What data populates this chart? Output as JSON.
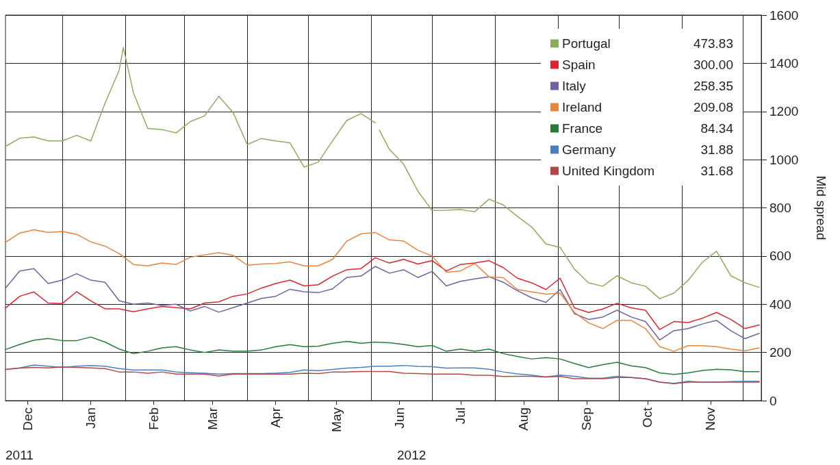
{
  "chart_data": {
    "type": "line",
    "ylabel": "Mid spread",
    "ylim": [
      0,
      1600
    ],
    "yticks": [
      0,
      200,
      400,
      600,
      800,
      1000,
      1200,
      1400,
      1600
    ],
    "xlim": [
      "2011-12-04",
      "2012-12-10"
    ],
    "xticks": [
      {
        "value": "2011-12-15",
        "label": "Dec"
      },
      {
        "value": "2012-01-01",
        "label": null
      },
      {
        "value": "2012-01-15",
        "label": "Jan"
      },
      {
        "value": "2012-02-01",
        "label": null
      },
      {
        "value": "2012-02-15",
        "label": "Feb"
      },
      {
        "value": "2012-03-01",
        "label": null
      },
      {
        "value": "2012-03-15",
        "label": "Mar"
      },
      {
        "value": "2012-04-01",
        "label": null
      },
      {
        "value": "2012-04-15",
        "label": "Apr"
      },
      {
        "value": "2012-05-01",
        "label": null
      },
      {
        "value": "2012-05-15",
        "label": "May"
      },
      {
        "value": "2012-06-01",
        "label": null
      },
      {
        "value": "2012-06-15",
        "label": "Jun"
      },
      {
        "value": "2012-07-01",
        "label": null
      },
      {
        "value": "2012-07-15",
        "label": "Jul"
      },
      {
        "value": "2012-08-01",
        "label": null
      },
      {
        "value": "2012-08-15",
        "label": "Aug"
      },
      {
        "value": "2012-09-01",
        "label": null
      },
      {
        "value": "2012-09-15",
        "label": "Sep"
      },
      {
        "value": "2012-10-01",
        "label": null
      },
      {
        "value": "2012-10-15",
        "label": "Oct"
      },
      {
        "value": "2012-11-01",
        "label": null
      },
      {
        "value": "2012-11-15",
        "label": "Nov"
      },
      {
        "value": "2012-12-01",
        "label": null
      }
    ],
    "x": [
      "2011-12-04",
      "2011-12-11",
      "2011-12-18",
      "2011-12-25",
      "2012-01-01",
      "2012-01-08",
      "2012-01-15",
      "2012-01-22",
      "2012-01-29",
      "2012-02-05",
      "2012-02-12",
      "2012-02-19",
      "2012-02-26",
      "2012-03-04",
      "2012-03-11",
      "2012-03-18",
      "2012-03-25",
      "2012-04-01",
      "2012-04-08",
      "2012-04-15",
      "2012-04-22",
      "2012-04-29",
      "2012-05-06",
      "2012-05-13",
      "2012-05-20",
      "2012-05-27",
      "2012-06-03",
      "2012-06-10",
      "2012-06-17",
      "2012-06-24",
      "2012-07-01",
      "2012-07-08",
      "2012-07-15",
      "2012-07-22",
      "2012-07-29",
      "2012-08-05",
      "2012-08-12",
      "2012-08-19",
      "2012-08-26",
      "2012-09-02",
      "2012-09-09",
      "2012-09-16",
      "2012-09-23",
      "2012-09-30",
      "2012-10-07",
      "2012-10-14",
      "2012-10-21",
      "2012-10-28",
      "2012-11-04",
      "2012-11-11",
      "2012-11-18",
      "2012-11-25",
      "2012-12-02",
      "2012-12-09"
    ],
    "series": [
      {
        "name": "Portugal",
        "color": "#8aad5c",
        "x": [
          "2011-12-04",
          "2011-12-11",
          "2011-12-18",
          "2011-12-25",
          "2012-01-01",
          "2012-01-08",
          "2012-01-15",
          "2012-01-22",
          "2012-01-29",
          "2012-01-31",
          "2012-02-05",
          "2012-02-12",
          "2012-02-19",
          "2012-02-26",
          "2012-03-04",
          "2012-03-11",
          "2012-03-18",
          "2012-03-25",
          "2012-04-01",
          "2012-04-08",
          "2012-04-15",
          "2012-04-22",
          "2012-04-29",
          "2012-05-06",
          "2012-05-13",
          "2012-05-20",
          "2012-05-27",
          "2012-06-03",
          "2012-06-04",
          "2012-06-05",
          "2012-06-10",
          "2012-06-17",
          "2012-06-24",
          "2012-07-01",
          "2012-07-08",
          "2012-07-15",
          "2012-07-22",
          "2012-07-29",
          "2012-08-05",
          "2012-08-12",
          "2012-08-19",
          "2012-08-26",
          "2012-09-02",
          "2012-09-09",
          "2012-09-16",
          "2012-09-23",
          "2012-09-30",
          "2012-10-07",
          "2012-10-14",
          "2012-10-21",
          "2012-10-28",
          "2012-11-04",
          "2012-11-11",
          "2012-11-18",
          "2012-11-25",
          "2012-12-02",
          "2012-12-09"
        ],
        "values": [
          1055,
          1089,
          1094,
          1078,
          1078,
          1101,
          1078,
          1234,
          1372,
          1466,
          1277,
          1130,
          1125,
          1111,
          1158,
          1182,
          1263,
          1196,
          1063,
          1088,
          1078,
          1070,
          969,
          990,
          1078,
          1163,
          1191,
          1153,
          null,
          1123,
          1042,
          981,
          869,
          789,
          790,
          793,
          784,
          836,
          812,
          764,
          721,
          650,
          636,
          546,
          489,
          475,
          518,
          489,
          475,
          423,
          446,
          499,
          574,
          620,
          518,
          489,
          470
        ]
      },
      {
        "name": "Spain",
        "color": "#d7262e",
        "values": [
          384,
          433,
          451,
          405,
          403,
          452,
          414,
          381,
          381,
          369,
          381,
          391,
          386,
          381,
          405,
          410,
          433,
          443,
          467,
          486,
          500,
          476,
          481,
          517,
          543,
          548,
          593,
          571,
          586,
          567,
          581,
          538,
          565,
          571,
          581,
          552,
          508,
          489,
          461,
          508,
          385,
          366,
          380,
          404,
          385,
          375,
          295,
          328,
          324,
          342,
          366,
          337,
          299,
          314
        ]
      },
      {
        "name": "Italy",
        "color": "#7060a0",
        "values": [
          467,
          538,
          548,
          486,
          500,
          527,
          500,
          491,
          414,
          400,
          405,
          395,
          400,
          372,
          391,
          367,
          386,
          405,
          424,
          433,
          462,
          452,
          448,
          464,
          511,
          517,
          557,
          529,
          543,
          511,
          536,
          476,
          495,
          505,
          514,
          491,
          456,
          427,
          408,
          461,
          361,
          337,
          347,
          375,
          347,
          328,
          252,
          290,
          299,
          318,
          333,
          290,
          257,
          279
        ]
      },
      {
        "name": "Ireland",
        "color": "#e8843c",
        "values": [
          657,
          695,
          709,
          698,
          702,
          690,
          659,
          641,
          610,
          565,
          559,
          571,
          565,
          595,
          605,
          614,
          603,
          562,
          567,
          569,
          576,
          559,
          559,
          586,
          662,
          692,
          698,
          667,
          662,
          624,
          600,
          533,
          538,
          569,
          514,
          510,
          461,
          451,
          442,
          446,
          366,
          323,
          299,
          333,
          333,
          299,
          224,
          205,
          228,
          228,
          224,
          214,
          207,
          219
        ]
      },
      {
        "name": "France",
        "color": "#267a3a",
        "values": [
          212,
          233,
          251,
          258,
          249,
          249,
          264,
          243,
          214,
          195,
          205,
          219,
          224,
          210,
          200,
          210,
          205,
          205,
          210,
          224,
          232,
          224,
          226,
          238,
          246,
          238,
          243,
          240,
          233,
          224,
          229,
          205,
          214,
          205,
          214,
          195,
          183,
          173,
          178,
          173,
          154,
          137,
          149,
          159,
          144,
          137,
          115,
          109,
          115,
          125,
          130,
          128,
          120,
          120
        ]
      },
      {
        "name": "Germany",
        "color": "#4a7fbf",
        "values": [
          129,
          136,
          148,
          143,
          138,
          143,
          146,
          143,
          133,
          127,
          127,
          127,
          119,
          116,
          114,
          110,
          112,
          112,
          112,
          114,
          117,
          127,
          124,
          129,
          135,
          138,
          143,
          143,
          146,
          142,
          141,
          135,
          136,
          136,
          130,
          119,
          111,
          106,
          98,
          106,
          101,
          93,
          93,
          101,
          96,
          91,
          77,
          72,
          80,
          77,
          77,
          79,
          80,
          80
        ]
      },
      {
        "name": "United Kingdom",
        "color": "#b04848",
        "values": [
          129,
          135,
          138,
          136,
          140,
          138,
          136,
          133,
          119,
          119,
          114,
          119,
          110,
          110,
          110,
          102,
          110,
          110,
          110,
          110,
          110,
          114,
          112,
          119,
          119,
          121,
          121,
          121,
          114,
          112,
          110,
          110,
          110,
          105,
          105,
          100,
          101,
          101,
          98,
          101,
          91,
          91,
          91,
          96,
          96,
          91,
          77,
          70,
          77,
          77,
          77,
          77,
          77,
          77
        ]
      }
    ],
    "annotations": [
      "473.83",
      "300.00",
      "258.35",
      "209.08",
      "84.34",
      "31.88",
      "31.68",
      "2011",
      "2012"
    ],
    "grid": true,
    "legend": "top right",
    "line_style": "solid"
  }
}
